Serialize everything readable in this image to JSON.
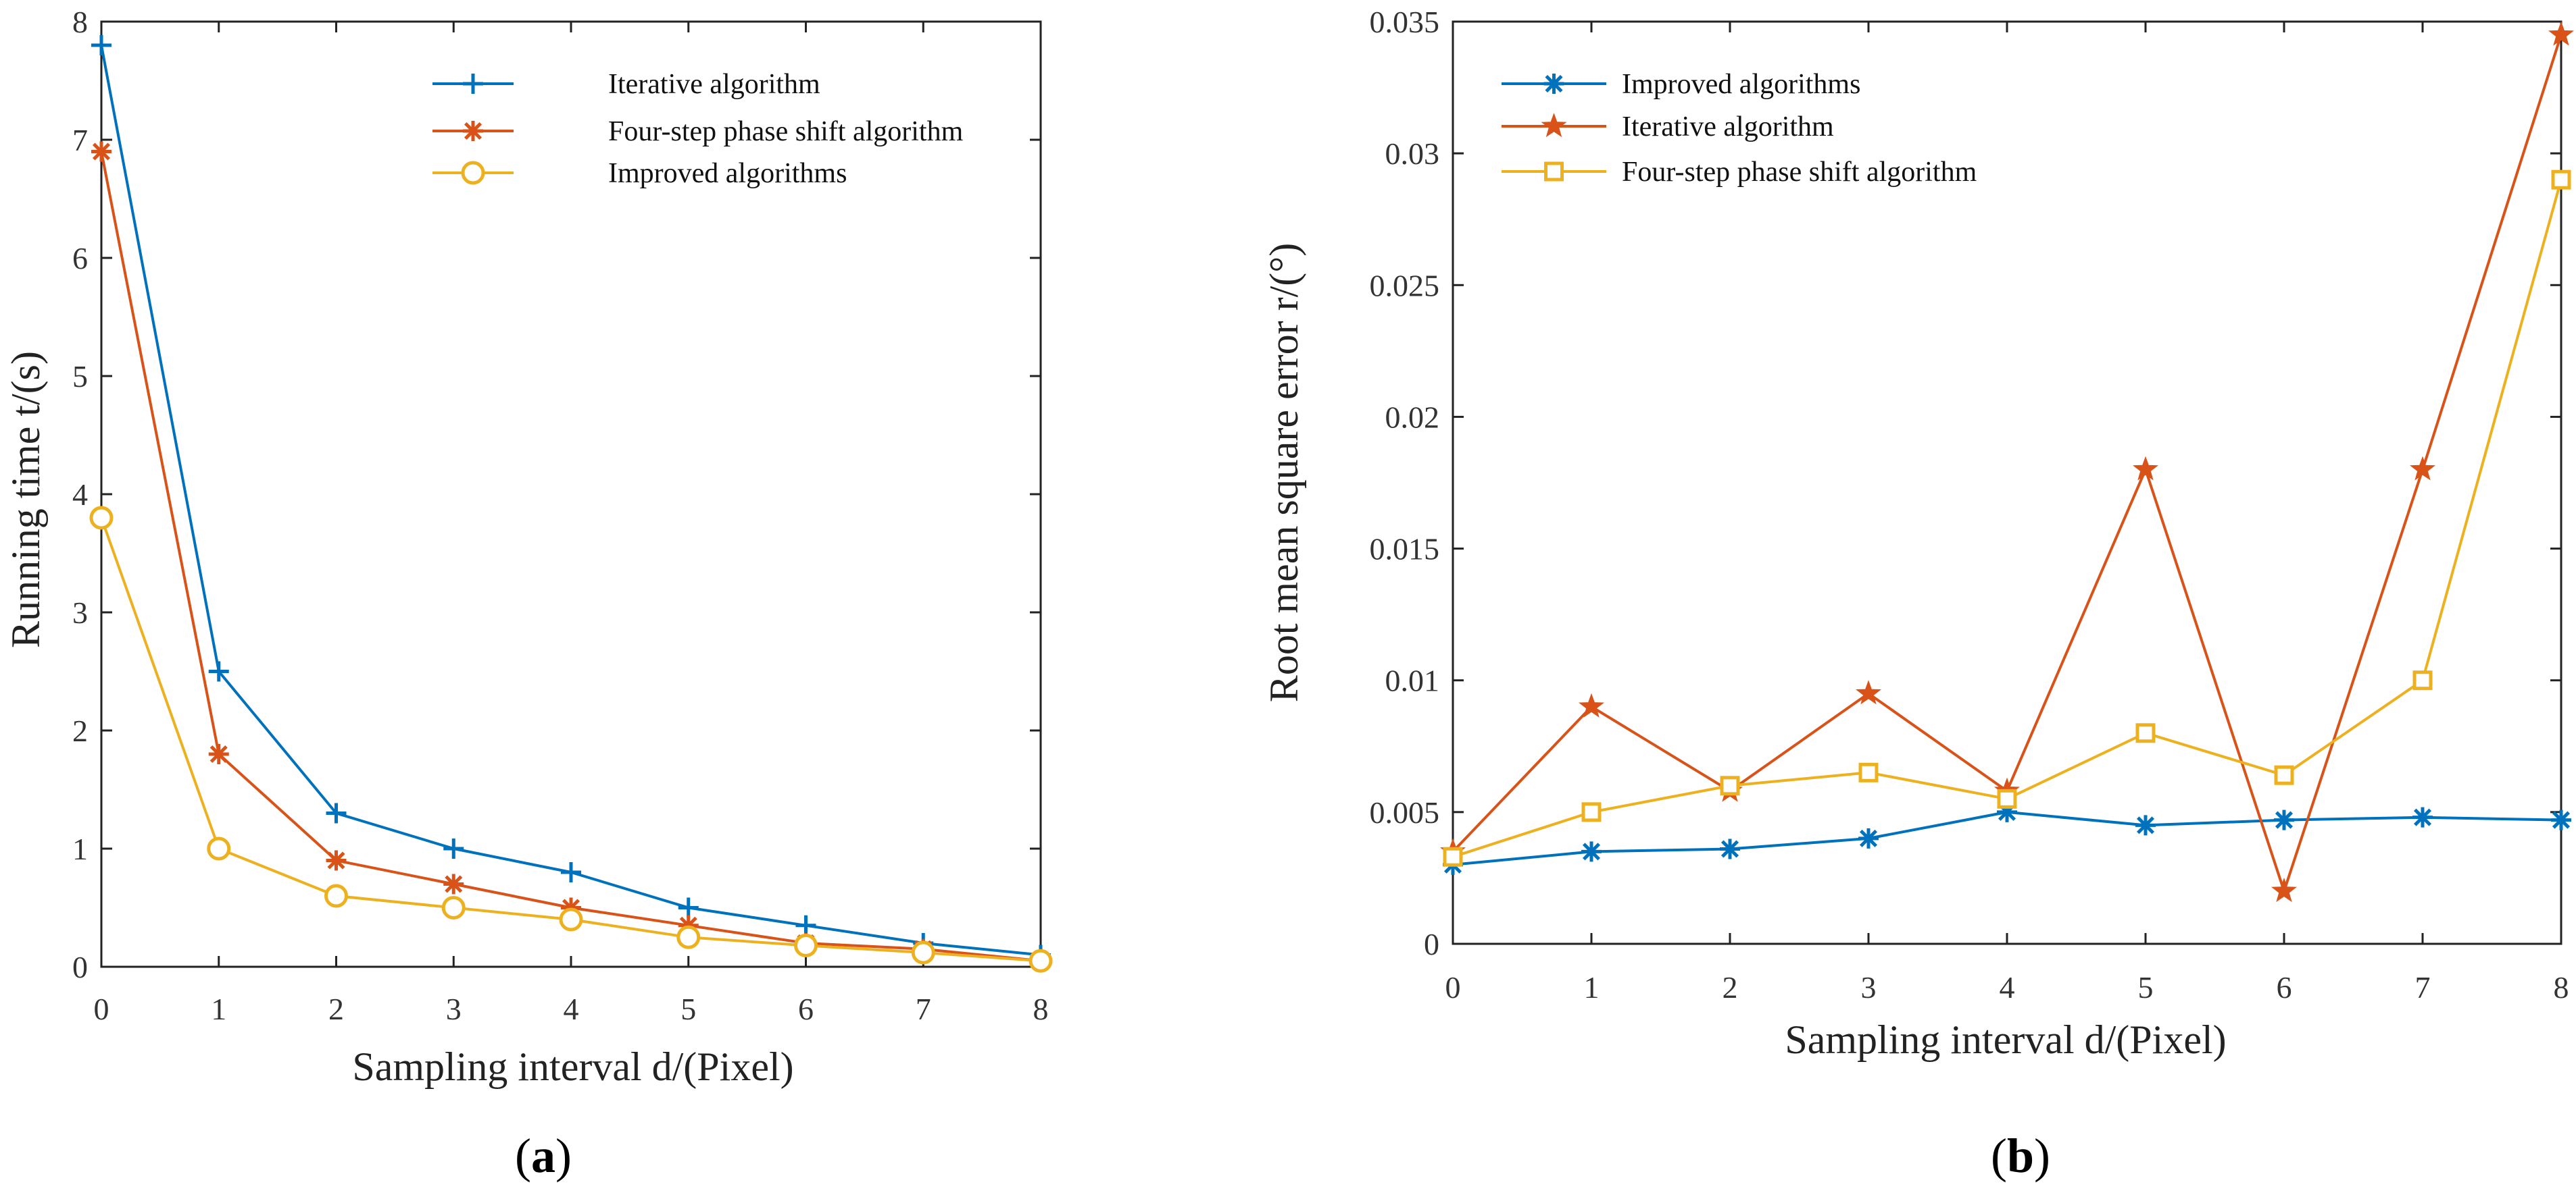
{
  "chart_data": [
    {
      "type": "line",
      "caption": "a",
      "xlabel": "Sampling interval d/(Pixel)",
      "ylabel": "Running time t/(s)",
      "x": [
        0,
        1,
        2,
        3,
        4,
        5,
        6,
        7,
        8
      ],
      "xlim": [
        0,
        8
      ],
      "ylim": [
        0,
        8
      ],
      "xticks": [
        "0",
        "1",
        "2",
        "3",
        "4",
        "5",
        "6",
        "7",
        "8"
      ],
      "yticks": [
        "0",
        "1",
        "2",
        "3",
        "4",
        "5",
        "6",
        "7",
        "8"
      ],
      "grid": false,
      "legend_position": "top-right",
      "series": [
        {
          "name": "Iterative algorithm",
          "marker": "plus",
          "color": "#0072BD",
          "values": [
            7.8,
            2.5,
            1.3,
            1.0,
            0.8,
            0.5,
            0.35,
            0.2,
            0.1
          ]
        },
        {
          "name": "Four-step phase shift algorithm",
          "marker": "asterisk",
          "color": "#D95319",
          "values": [
            6.9,
            1.8,
            0.9,
            0.7,
            0.5,
            0.35,
            0.2,
            0.15,
            0.05
          ]
        },
        {
          "name": "Improved algorithms",
          "marker": "circle",
          "color": "#EDB120",
          "values": [
            3.8,
            1.0,
            0.6,
            0.5,
            0.4,
            0.25,
            0.18,
            0.12,
            0.05
          ]
        }
      ]
    },
    {
      "type": "line",
      "caption": "b",
      "xlabel": "Sampling interval d/(Pixel)",
      "ylabel": "Root mean square error r/(°)",
      "x": [
        0,
        1,
        2,
        3,
        4,
        5,
        6,
        7,
        8
      ],
      "xlim": [
        0,
        8
      ],
      "ylim": [
        0,
        0.035
      ],
      "xticks": [
        "0",
        "1",
        "2",
        "3",
        "4",
        "5",
        "6",
        "7",
        "8"
      ],
      "yticks": [
        "0",
        "0.005",
        "0.01",
        "0.015",
        "0.02",
        "0.025",
        "0.03",
        "0.035"
      ],
      "grid": false,
      "legend_position": "top-left",
      "series": [
        {
          "name": "Improved algorithms",
          "marker": "asterisk",
          "color": "#0072BD",
          "values": [
            0.003,
            0.0035,
            0.0036,
            0.004,
            0.005,
            0.0045,
            0.0047,
            0.0048,
            0.0047
          ]
        },
        {
          "name": "Iterative algorithm",
          "marker": "star",
          "color": "#D95319",
          "values": [
            0.0035,
            0.009,
            0.0058,
            0.0095,
            0.0058,
            0.018,
            0.002,
            0.018,
            0.0345
          ]
        },
        {
          "name": "Four-step phase shift algorithm",
          "marker": "square",
          "color": "#EDB120",
          "values": [
            0.0033,
            0.005,
            0.006,
            0.0065,
            0.0055,
            0.008,
            0.0064,
            0.01,
            0.029
          ]
        }
      ]
    }
  ]
}
